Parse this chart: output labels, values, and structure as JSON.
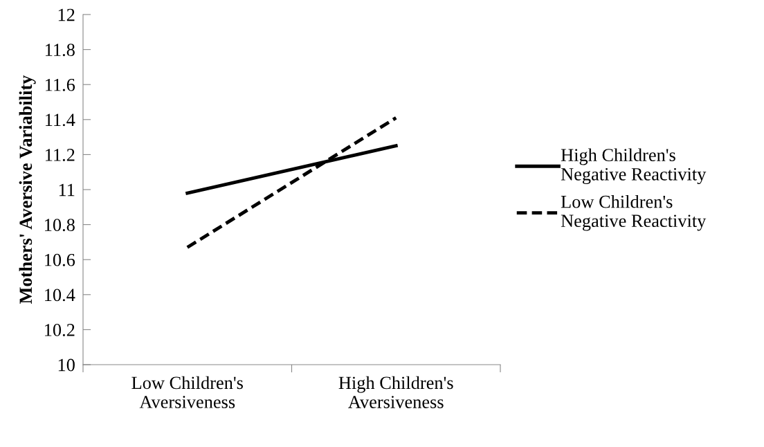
{
  "chart_data": {
    "type": "line",
    "ylabel": "Mothers' Aversive Variability",
    "categories": [
      "Low Children's\nAversiveness",
      "High Children's\nAversiveness"
    ],
    "series": [
      {
        "name": "High Children's\nNegative Reactivity",
        "color": "#000000",
        "values": [
          10.98,
          11.25
        ],
        "line_style": "solid"
      },
      {
        "name": "Low Children's\nNegative Reactivity",
        "color": "#000000",
        "values": [
          10.67,
          11.41
        ],
        "line_style": "dashed"
      }
    ],
    "ylim": [
      10,
      12
    ],
    "yticks": [
      10,
      10.2,
      10.4,
      10.6,
      10.8,
      11,
      11.2,
      11.4,
      11.6,
      11.8,
      12
    ],
    "grid": false,
    "legend": "right",
    "marker": "none"
  }
}
